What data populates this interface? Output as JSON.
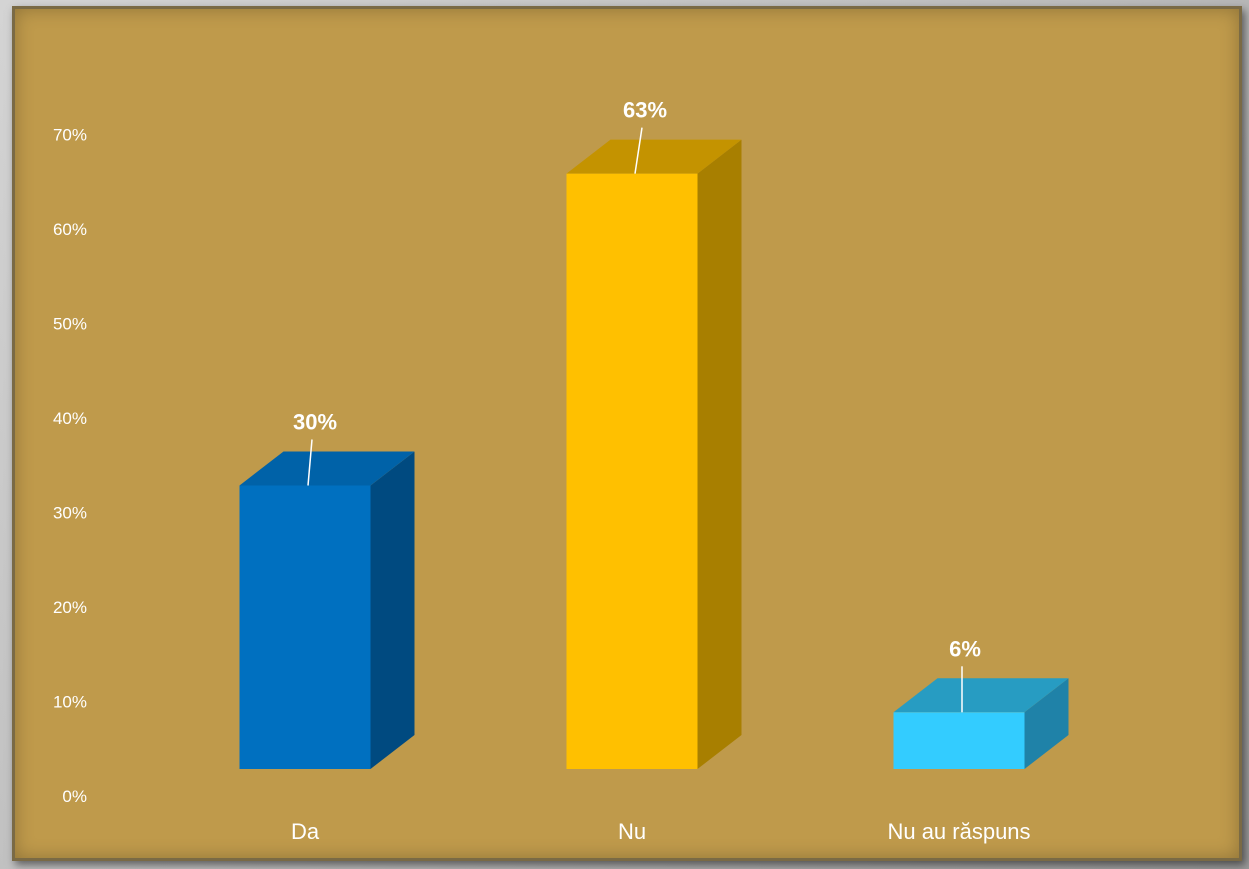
{
  "chart_data": {
    "type": "bar",
    "title": "",
    "xlabel": "",
    "ylabel": "",
    "categories": [
      "Da",
      "Nu",
      "Nu au răspuns"
    ],
    "values": [
      30,
      63,
      6
    ],
    "data_labels": [
      "30%",
      "63%",
      "6%"
    ],
    "ylim": [
      0,
      70
    ],
    "y_ticks": [
      "0%",
      "10%",
      "20%",
      "30%",
      "40%",
      "50%",
      "60%",
      "70%"
    ],
    "grid": false,
    "bar_style": "3d",
    "colors": {
      "front": [
        "#0070c0",
        "#ffc000",
        "#33ccff"
      ],
      "side": [
        "#004a80",
        "#a87f00",
        "#1f82a8"
      ],
      "top": [
        "#0062a8",
        "#c49300",
        "#279cc2"
      ],
      "background": "#bf9a4b"
    }
  }
}
